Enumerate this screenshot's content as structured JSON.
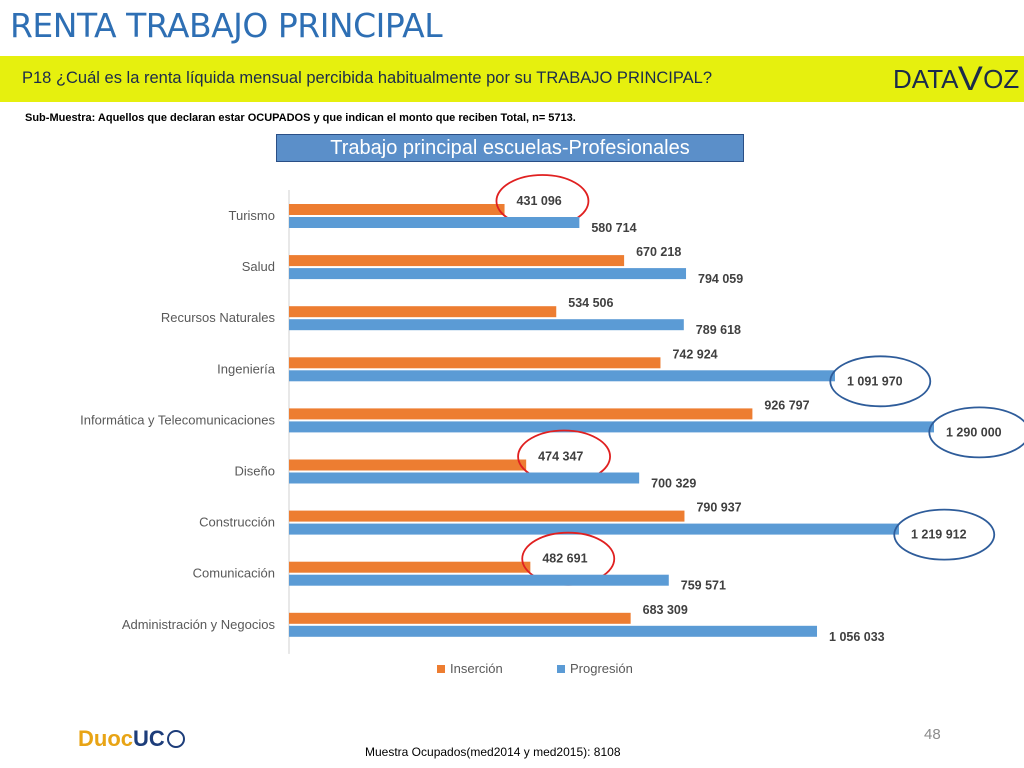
{
  "slide": {
    "title": "RENTA TRABAJO PRINCIPAL",
    "question": "P18 ¿Cuál es la renta líquida mensual percibida habitualmente por su TRABAJO PRINCIPAL?",
    "brand_left": "DATA",
    "brand_mark": "V",
    "brand_right": "OZ",
    "subsample": "Sub-Muestra: Aquellos que declaran estar OCUPADOS y que indican el monto que reciben Total, n= 5713.",
    "footer_logo_a": "Duoc",
    "footer_logo_b": "UC",
    "page_number": "48",
    "footnote": "Muestra Ocupados(med2014 y med2015): 8108"
  },
  "colors": {
    "insercion": "#ed7d31",
    "progresion": "#5b9bd5",
    "highlight_red": "#e02020",
    "highlight_blue": "#2e5c9a",
    "brand_yellow": "#e6f00e",
    "title_blue": "#2e6fb4"
  },
  "chart_data": {
    "type": "bar",
    "orientation": "horizontal",
    "title": "Trabajo principal escuelas-Profesionales",
    "categories": [
      "Turismo",
      "Salud",
      "Recursos Naturales",
      "Ingeniería",
      "Informática y Telecomunicaciones",
      "Diseño",
      "Construcción",
      "Comunicación",
      "Administración y Negocios"
    ],
    "series": [
      {
        "name": "Inserción",
        "values": [
          431096,
          670218,
          534506,
          742924,
          926797,
          474347,
          790937,
          482691,
          683309
        ],
        "labels": [
          "431 096",
          "670 218",
          "534 506",
          "742 924",
          "926 797",
          "474 347",
          "790 937",
          "482 691",
          "683 309"
        ]
      },
      {
        "name": "Progresión",
        "values": [
          580714,
          794059,
          789618,
          1091970,
          1290000,
          700329,
          1219912,
          759571,
          1056033
        ],
        "labels": [
          "580 714",
          "794 059",
          "789 618",
          "1 091 970",
          "1 290 000",
          "700 329",
          "1 219 912",
          "759 571",
          "1 056 033"
        ]
      }
    ],
    "xlim": [
      0,
      1300000
    ],
    "grid": false,
    "legend": "bottom",
    "highlighted": {
      "Inserción": [
        "Turismo",
        "Diseño",
        "Comunicación"
      ],
      "Progresión": [
        "Ingeniería",
        "Informática y Telecomunicaciones",
        "Construcción"
      ]
    }
  }
}
